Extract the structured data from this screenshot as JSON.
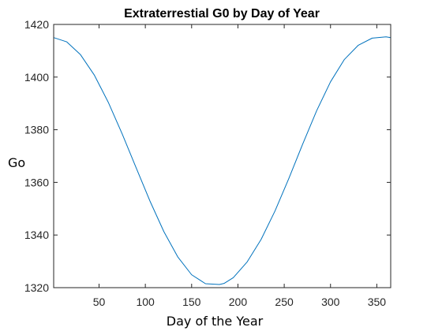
{
  "chart_data": {
    "type": "line",
    "title": "Extraterrestial G0 by Day of Year",
    "xlabel": "Day of the Year",
    "ylabel": "Go",
    "xlim": [
      1,
      365
    ],
    "ylim": [
      1320,
      1420
    ],
    "xticks": [
      50,
      100,
      150,
      200,
      250,
      300,
      350
    ],
    "yticks": [
      1320,
      1340,
      1360,
      1380,
      1400,
      1420
    ],
    "grid": false,
    "legend": "none",
    "series": [
      {
        "color": "#0072BD",
        "x": [
          1,
          15,
          30,
          45,
          60,
          75,
          90,
          105,
          120,
          135,
          150,
          165,
          180,
          185,
          195,
          210,
          225,
          240,
          255,
          270,
          285,
          300,
          315,
          330,
          345,
          360,
          365
        ],
        "y": [
          1415.0,
          1413.4,
          1408.5,
          1400.7,
          1390.4,
          1378.4,
          1365.6,
          1352.9,
          1341.3,
          1331.7,
          1324.9,
          1321.5,
          1321.2,
          1321.6,
          1323.8,
          1329.8,
          1338.3,
          1349.1,
          1361.5,
          1374.6,
          1387.2,
          1398.2,
          1406.7,
          1412.1,
          1414.8,
          1415.3,
          1415.0
        ]
      }
    ]
  }
}
